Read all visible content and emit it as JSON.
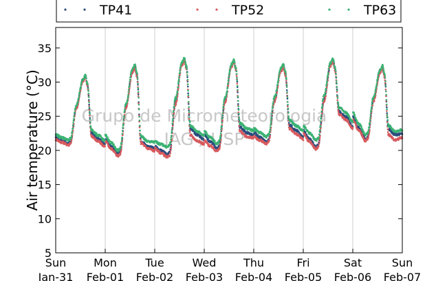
{
  "chart_data": {
    "type": "scatter",
    "ylabel": "Air temperature (°C)",
    "ylim": [
      5,
      38
    ],
    "yticks": [
      5,
      10,
      15,
      20,
      25,
      30,
      35
    ],
    "xlim_days": [
      0,
      7
    ],
    "xticks": [
      {
        "day": "Sun",
        "date": "Jan-31"
      },
      {
        "day": "Mon",
        "date": "Feb-01"
      },
      {
        "day": "Tue",
        "date": "Feb-02"
      },
      {
        "day": "Wed",
        "date": "Feb-03"
      },
      {
        "day": "Thu",
        "date": "Feb-04"
      },
      {
        "day": "Fri",
        "date": "Feb-05"
      },
      {
        "day": "Sat",
        "date": "Feb-06"
      },
      {
        "day": "Sun",
        "date": "Feb-07"
      }
    ],
    "grid": "vertical",
    "legend_position": "top",
    "watermark": [
      "Grupo de Micrometeorologia",
      "IAG / USP"
    ],
    "series": [
      {
        "name": "TP41",
        "color": "#2b4c7e",
        "daily": [
          {
            "tmin": 21.0,
            "tmax": 30.9,
            "tafter": 21.7
          },
          {
            "tmin": 19.5,
            "tmax": 32.3,
            "tafter": 20.6
          },
          {
            "tmin": 19.4,
            "tmax": 33.4,
            "tafter": 22.3
          },
          {
            "tmin": 20.3,
            "tmax": 33.1,
            "tafter": 22.6
          },
          {
            "tmin": 21.2,
            "tmax": 32.4,
            "tafter": 22.9
          },
          {
            "tmin": 20.5,
            "tmax": 33.2,
            "tafter": 24.9
          },
          {
            "tmin": 21.7,
            "tmax": 32.2,
            "tafter": 22.3
          }
        ]
      },
      {
        "name": "TP52",
        "color": "#d65a5e",
        "daily": [
          {
            "tmin": 20.8,
            "tmax": 30.7,
            "tafter": 21.3
          },
          {
            "tmin": 19.2,
            "tmax": 32.0,
            "tafter": 20.3
          },
          {
            "tmin": 19.0,
            "tmax": 33.1,
            "tafter": 21.4
          },
          {
            "tmin": 19.9,
            "tmax": 32.9,
            "tafter": 22.0
          },
          {
            "tmin": 21.0,
            "tmax": 32.2,
            "tafter": 22.4
          },
          {
            "tmin": 20.2,
            "tmax": 33.0,
            "tafter": 24.5
          },
          {
            "tmin": 21.4,
            "tmax": 32.0,
            "tafter": 21.5
          }
        ]
      },
      {
        "name": "TP63",
        "color": "#3bb273",
        "daily": [
          {
            "tmin": 21.5,
            "tmax": 31.0,
            "tafter": 22.2
          },
          {
            "tmin": 20.0,
            "tmax": 32.5,
            "tafter": 21.3
          },
          {
            "tmin": 20.5,
            "tmax": 33.5,
            "tafter": 22.8
          },
          {
            "tmin": 21.0,
            "tmax": 33.2,
            "tafter": 23.2
          },
          {
            "tmin": 22.0,
            "tmax": 32.6,
            "tafter": 23.6
          },
          {
            "tmin": 21.5,
            "tmax": 33.4,
            "tafter": 25.5
          },
          {
            "tmin": 22.3,
            "tmax": 32.4,
            "tafter": 22.8
          }
        ]
      }
    ]
  }
}
